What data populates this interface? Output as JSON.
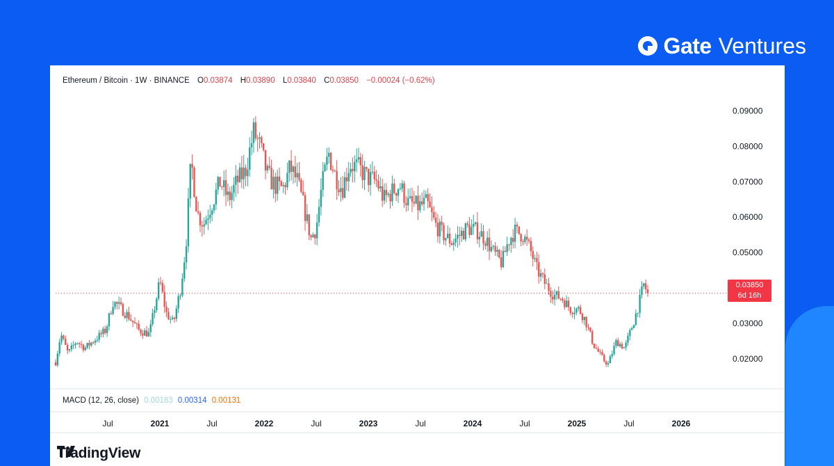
{
  "brand": {
    "name_bold": "Gate",
    "name_light": "Ventures",
    "icon": "gate-logo-icon"
  },
  "header": {
    "symbol": "Ethereum / Bitcoin · 1W · BINANCE",
    "open_label": "O",
    "open": "0.03874",
    "high_label": "H",
    "high": "0.03890",
    "low_label": "L",
    "low": "0.03840",
    "close_label": "C",
    "close": "0.03850",
    "change": "−0.00024 (−0.62%)"
  },
  "last_price": {
    "value": "0.03850",
    "countdown": "6d 16h",
    "color": "#f23645"
  },
  "macd": {
    "label": "MACD (12, 26, close)",
    "v1": "0.00183",
    "v2": "0.00314",
    "v3": "0.00131"
  },
  "footer": {
    "logo_text": "TradingView",
    "icon": "tradingview-logo-icon"
  },
  "colors": {
    "background": "#0b5cf2",
    "up": "#26a69a",
    "down": "#ef5350"
  },
  "chart_data": {
    "type": "candlestick",
    "title": "",
    "xlabel": "",
    "ylabel": "",
    "ylim": [
      0.0125,
      0.095
    ],
    "yticks": [
      "0.02000",
      "0.03000",
      "0.04000",
      "0.05000",
      "0.06000",
      "0.07000",
      "0.08000",
      "0.09000"
    ],
    "xlim": [
      2020.0,
      2026.4
    ],
    "xticks": [
      {
        "label": "Jul",
        "x": 2020.5,
        "bold": false
      },
      {
        "label": "2021",
        "x": 2021.0,
        "bold": true
      },
      {
        "label": "Jul",
        "x": 2021.5,
        "bold": false
      },
      {
        "label": "2022",
        "x": 2022.0,
        "bold": true
      },
      {
        "label": "Jul",
        "x": 2022.5,
        "bold": false
      },
      {
        "label": "2023",
        "x": 2023.0,
        "bold": true
      },
      {
        "label": "Jul",
        "x": 2023.5,
        "bold": false
      },
      {
        "label": "2024",
        "x": 2024.0,
        "bold": true
      },
      {
        "label": "Jul",
        "x": 2024.5,
        "bold": false
      },
      {
        "label": "2025",
        "x": 2025.0,
        "bold": true
      },
      {
        "label": "Jul",
        "x": 2025.5,
        "bold": false
      },
      {
        "label": "2026",
        "x": 2026.0,
        "bold": true
      }
    ],
    "current_price": 0.0385,
    "price_path": [
      [
        2020.0,
        0.019
      ],
      [
        2020.05,
        0.027
      ],
      [
        2020.12,
        0.0215
      ],
      [
        2020.2,
        0.025
      ],
      [
        2020.28,
        0.023
      ],
      [
        2020.4,
        0.026
      ],
      [
        2020.48,
        0.028
      ],
      [
        2020.55,
        0.036
      ],
      [
        2020.6,
        0.035
      ],
      [
        2020.7,
        0.032
      ],
      [
        2020.8,
        0.028
      ],
      [
        2020.9,
        0.027
      ],
      [
        2021.0,
        0.042
      ],
      [
        2021.06,
        0.033
      ],
      [
        2021.13,
        0.03
      ],
      [
        2021.2,
        0.04
      ],
      [
        2021.25,
        0.052
      ],
      [
        2021.3,
        0.076
      ],
      [
        2021.36,
        0.061
      ],
      [
        2021.42,
        0.058
      ],
      [
        2021.5,
        0.064
      ],
      [
        2021.58,
        0.07
      ],
      [
        2021.66,
        0.065
      ],
      [
        2021.74,
        0.07
      ],
      [
        2021.82,
        0.073
      ],
      [
        2021.9,
        0.084
      ],
      [
        2021.96,
        0.08
      ],
      [
        2022.03,
        0.072
      ],
      [
        2022.1,
        0.069
      ],
      [
        2022.18,
        0.068
      ],
      [
        2022.25,
        0.074
      ],
      [
        2022.32,
        0.07
      ],
      [
        2022.38,
        0.063
      ],
      [
        2022.45,
        0.054
      ],
      [
        2022.5,
        0.057
      ],
      [
        2022.55,
        0.068
      ],
      [
        2022.62,
        0.078
      ],
      [
        2022.68,
        0.072
      ],
      [
        2022.75,
        0.068
      ],
      [
        2022.82,
        0.075
      ],
      [
        2022.9,
        0.074
      ],
      [
        2023.0,
        0.071
      ],
      [
        2023.08,
        0.07
      ],
      [
        2023.15,
        0.065
      ],
      [
        2023.22,
        0.067
      ],
      [
        2023.3,
        0.069
      ],
      [
        2023.38,
        0.064
      ],
      [
        2023.48,
        0.063
      ],
      [
        2023.56,
        0.064
      ],
      [
        2023.64,
        0.058
      ],
      [
        2023.72,
        0.055
      ],
      [
        2023.8,
        0.053
      ],
      [
        2023.88,
        0.055
      ],
      [
        2023.95,
        0.057
      ],
      [
        2024.05,
        0.056
      ],
      [
        2024.12,
        0.054
      ],
      [
        2024.2,
        0.05
      ],
      [
        2024.28,
        0.047
      ],
      [
        2024.34,
        0.053
      ],
      [
        2024.4,
        0.056
      ],
      [
        2024.48,
        0.055
      ],
      [
        2024.55,
        0.051
      ],
      [
        2024.62,
        0.045
      ],
      [
        2024.7,
        0.041
      ],
      [
        2024.78,
        0.038
      ],
      [
        2024.86,
        0.037
      ],
      [
        2024.94,
        0.034
      ],
      [
        2025.02,
        0.034
      ],
      [
        2025.08,
        0.031
      ],
      [
        2025.16,
        0.024
      ],
      [
        2025.26,
        0.0195
      ],
      [
        2025.3,
        0.0185
      ],
      [
        2025.38,
        0.025
      ],
      [
        2025.46,
        0.023
      ],
      [
        2025.54,
        0.03
      ],
      [
        2025.6,
        0.036
      ],
      [
        2025.64,
        0.041
      ],
      [
        2025.68,
        0.0385
      ]
    ]
  }
}
